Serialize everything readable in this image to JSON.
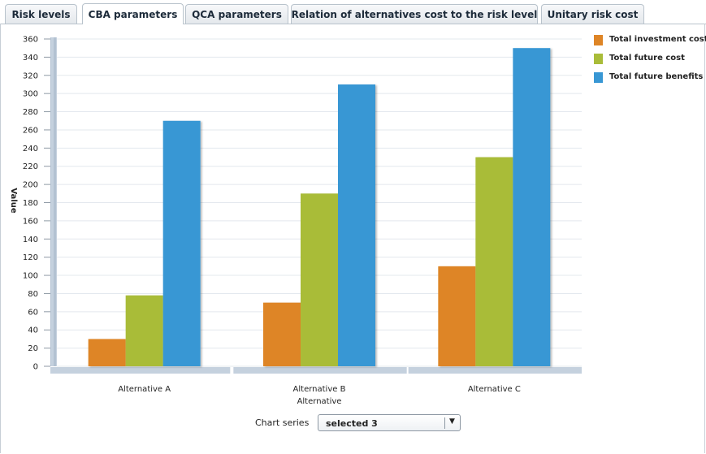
{
  "tabs": [
    {
      "label": "Risk levels",
      "active": false
    },
    {
      "label": "CBA parameters",
      "active": true
    },
    {
      "label": "QCA parameters",
      "active": false
    },
    {
      "label": "Relation of alternatives cost to the risk level",
      "active": false
    },
    {
      "label": "Unitary risk cost",
      "active": false
    }
  ],
  "chart_data": {
    "type": "bar",
    "xlabel": "Alternative",
    "ylabel": "Value",
    "ylim": [
      0,
      360
    ],
    "yticks": [
      0,
      20,
      40,
      60,
      80,
      100,
      120,
      140,
      160,
      180,
      200,
      220,
      240,
      260,
      280,
      300,
      320,
      340,
      360
    ],
    "categories": [
      "Alternative A",
      "Alternative B",
      "Alternative C"
    ],
    "series": [
      {
        "name": "Total investment cost",
        "color": "#de8526",
        "values": [
          30,
          70,
          110
        ]
      },
      {
        "name": "Total future cost",
        "color": "#a9bc39",
        "values": [
          78,
          190,
          230
        ]
      },
      {
        "name": "Total future benefits",
        "color": "#3897d4",
        "values": [
          270,
          310,
          350
        ]
      }
    ],
    "legend_position": "right",
    "grid": true
  },
  "controls": {
    "series_label": "Chart series",
    "series_value": "selected 3",
    "dropdown_arrow": "▼"
  }
}
